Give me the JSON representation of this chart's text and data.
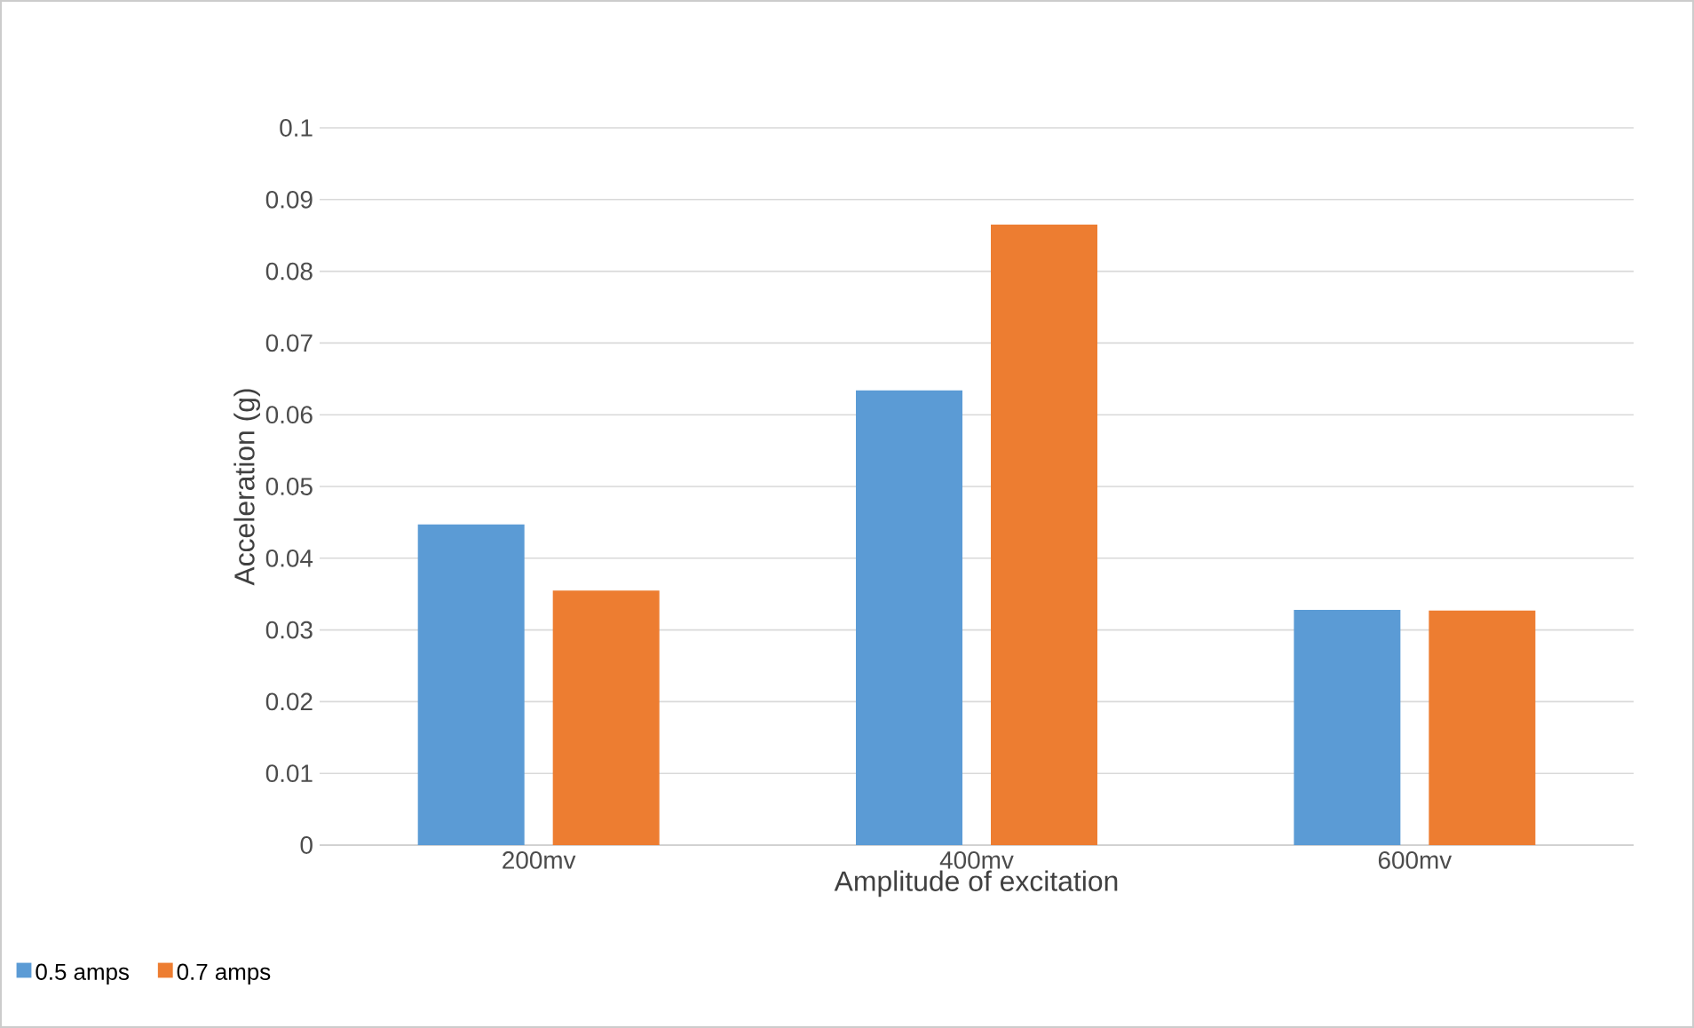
{
  "chart_data": {
    "type": "bar",
    "xlabel": "Amplitude of excitation",
    "ylabel": "Acceleration (g)",
    "categories": [
      "200mv",
      "400mv",
      "600mv"
    ],
    "series": [
      {
        "name": "0.5 amps",
        "color": "#5b9bd5",
        "values": [
          0.0447,
          0.0634,
          0.0328
        ]
      },
      {
        "name": "0.7 amps",
        "color": "#ed7d31",
        "values": [
          0.0355,
          0.0865,
          0.0327
        ]
      }
    ],
    "ylim": [
      0,
      0.1
    ],
    "yticks": [
      0,
      0.01,
      0.02,
      0.03,
      0.04,
      0.05,
      0.06,
      0.07,
      0.08,
      0.09,
      0.1
    ],
    "grid": "y",
    "legend": "bottom left"
  }
}
